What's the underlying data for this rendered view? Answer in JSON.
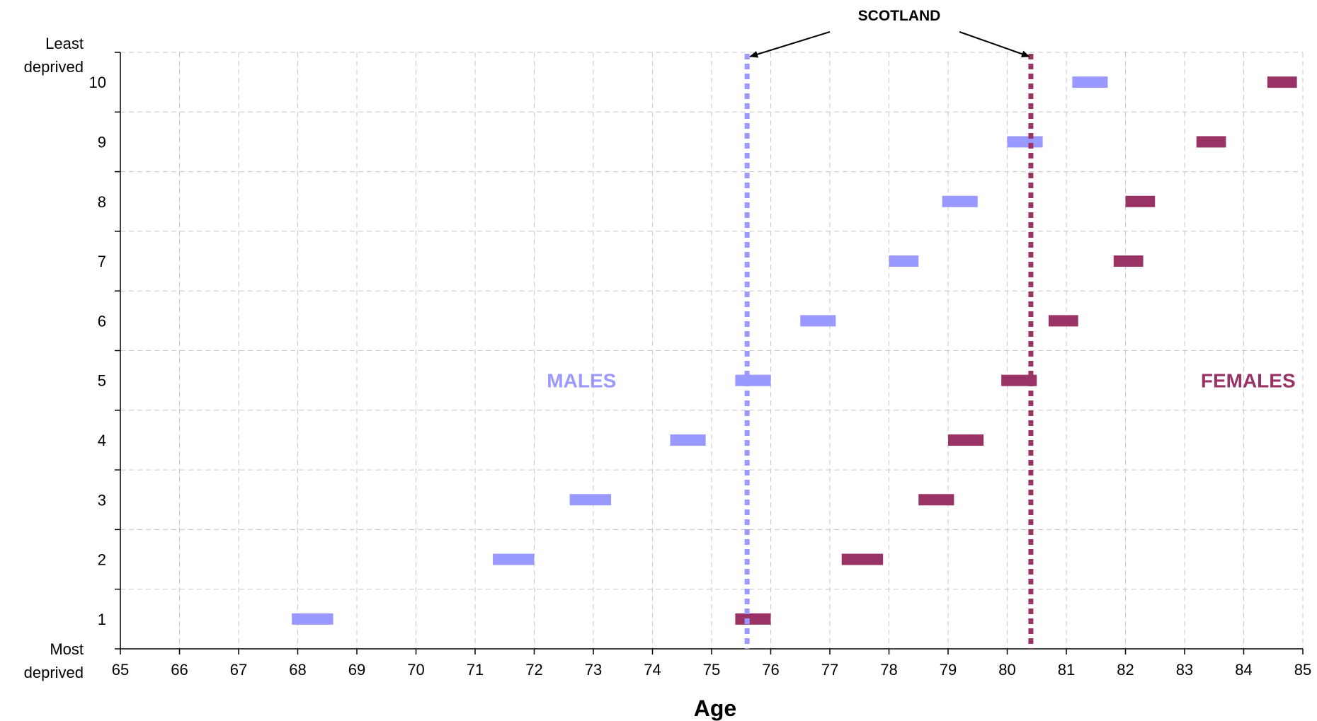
{
  "chart_data": {
    "type": "range-bar",
    "xlabel": "Age",
    "x_ticks": [
      "65",
      "66",
      "67",
      "68",
      "69",
      "70",
      "71",
      "72",
      "73",
      "74",
      "75",
      "76",
      "77",
      "78",
      "79",
      "80",
      "81",
      "82",
      "83",
      "84",
      "85"
    ],
    "xlim": [
      65,
      85
    ],
    "y_categories": [
      "1",
      "2",
      "3",
      "4",
      "5",
      "6",
      "7",
      "8",
      "9",
      "10"
    ],
    "y_top_label": [
      "Least",
      "deprived"
    ],
    "y_bottom_label": [
      "Most",
      "deprived"
    ],
    "grid": true,
    "series": [
      {
        "name": "MALES",
        "color": "#9999ff",
        "ranges": [
          [
            67.9,
            68.6
          ],
          [
            71.3,
            72.0
          ],
          [
            72.6,
            73.3
          ],
          [
            74.3,
            74.9
          ],
          [
            75.4,
            76.0
          ],
          [
            76.5,
            77.1
          ],
          [
            78.0,
            78.5
          ],
          [
            78.9,
            79.5
          ],
          [
            80.0,
            80.6
          ],
          [
            81.1,
            81.7
          ]
        ]
      },
      {
        "name": "FEMALES",
        "color": "#993366",
        "ranges": [
          [
            75.4,
            76.0
          ],
          [
            77.2,
            77.9
          ],
          [
            78.5,
            79.1
          ],
          [
            79.0,
            79.6
          ],
          [
            79.9,
            80.5
          ],
          [
            80.7,
            81.2
          ],
          [
            81.8,
            82.3
          ],
          [
            82.0,
            82.5
          ],
          [
            83.2,
            83.7
          ],
          [
            84.4,
            84.9
          ]
        ]
      }
    ],
    "reference_lines": [
      {
        "series": "MALES",
        "x": 75.6
      },
      {
        "series": "FEMALES",
        "x": 80.4
      }
    ],
    "annotation": "SCOTLAND"
  }
}
